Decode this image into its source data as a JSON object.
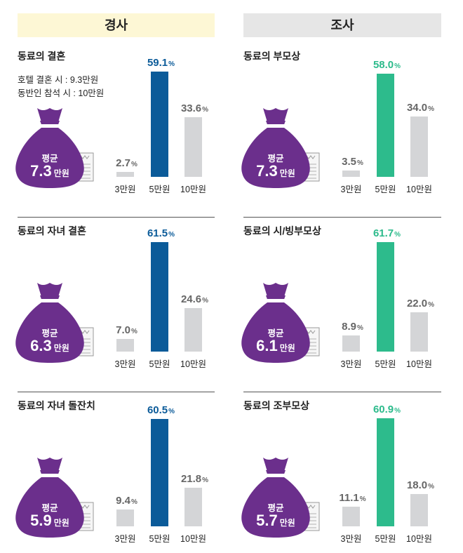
{
  "headers": {
    "left": "경사",
    "right": "조사"
  },
  "colors": {
    "blue": "#0b5b99",
    "green": "#2dbb8c",
    "gray": "#d4d5d7",
    "purple": "#6b2f8c",
    "yellow_bg": "#fdf7d5",
    "gray_bg": "#e6e6e6"
  },
  "icons": {
    "bag": "money-bag-icon",
    "bill": "banknote-icon"
  },
  "common": {
    "avg_label": "평균",
    "unit_manwon": "만원",
    "pct_sign": "%"
  },
  "chart_data": [
    {
      "type": "bar",
      "title": "동료의 결혼",
      "notes": [
        "호텔 결혼 시 : 9.3만원",
        "동반인 참석 시 : 10만원"
      ],
      "categories": [
        "3만원",
        "5만원",
        "10만원"
      ],
      "values": [
        2.7,
        59.1,
        33.6
      ],
      "average": "7.3",
      "highlight_color": "#0b5b99"
    },
    {
      "type": "bar",
      "title": "동료의 부모상",
      "notes": [],
      "categories": [
        "3만원",
        "5만원",
        "10만원"
      ],
      "values": [
        3.5,
        58.0,
        34.0
      ],
      "average": "7.3",
      "highlight_color": "#2dbb8c"
    },
    {
      "type": "bar",
      "title": "동료의 자녀 결혼",
      "notes": [],
      "categories": [
        "3만원",
        "5만원",
        "10만원"
      ],
      "values": [
        7.0,
        61.5,
        24.6
      ],
      "average": "6.3",
      "highlight_color": "#0b5b99"
    },
    {
      "type": "bar",
      "title": "동료의 시/빙부모상",
      "notes": [],
      "categories": [
        "3만원",
        "5만원",
        "10만원"
      ],
      "values": [
        8.9,
        61.7,
        22.0
      ],
      "average": "6.1",
      "highlight_color": "#2dbb8c"
    },
    {
      "type": "bar",
      "title": "동료의 자녀 돌잔치",
      "notes": [],
      "categories": [
        "3만원",
        "5만원",
        "10만원"
      ],
      "values": [
        9.4,
        60.5,
        21.8
      ],
      "average": "5.9",
      "highlight_color": "#0b5b99"
    },
    {
      "type": "bar",
      "title": "동료의 조부모상",
      "notes": [],
      "categories": [
        "3만원",
        "5만원",
        "10만원"
      ],
      "values": [
        11.1,
        60.9,
        18.0
      ],
      "average": "5.7",
      "highlight_color": "#2dbb8c"
    }
  ]
}
